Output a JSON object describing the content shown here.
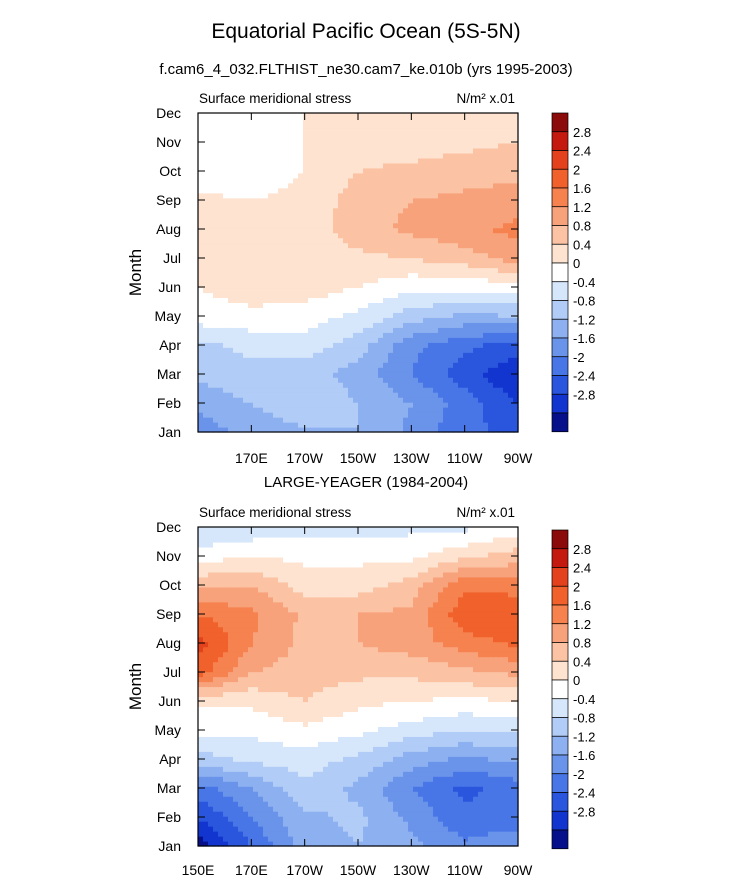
{
  "title": "Equatorial Pacific Ocean (5S-5N)",
  "chart_data": [
    {
      "type": "heatmap",
      "title": "f.cam6_4_032.FLTHIST_ne30.cam7_ke.010b (yrs 1995-2003)",
      "left_label": "Surface meridional stress",
      "right_label": "N/m² x.01",
      "ylabel": "Month",
      "xlabel": "",
      "x_ticks": [
        "170E",
        "170W",
        "150W",
        "130W",
        "110W",
        "90W"
      ],
      "x_tick_pos": [
        170,
        190,
        210,
        230,
        250,
        270
      ],
      "y_ticks": [
        "Jan",
        "Feb",
        "Mar",
        "Apr",
        "May",
        "Jun",
        "Jul",
        "Aug",
        "Sep",
        "Oct",
        "Nov",
        "Dec"
      ],
      "x_range_deg": [
        150,
        270
      ],
      "x": [
        150,
        170,
        190,
        210,
        230,
        250,
        270
      ],
      "z": [
        [
          -1.4,
          -1.1,
          -0.9,
          -0.8,
          -1.3,
          -1.9,
          -2.1
        ],
        [
          -1.1,
          -0.8,
          -0.4,
          -0.8,
          -1.2,
          -1.8,
          -2.4
        ],
        [
          -0.7,
          -0.5,
          -0.6,
          -1.0,
          -1.6,
          -2.2,
          -2.8
        ],
        [
          -0.5,
          -0.3,
          -0.2,
          -0.6,
          -1.5,
          -1.9,
          -2.2
        ],
        [
          0.2,
          0.3,
          0.2,
          -0.1,
          -0.6,
          -0.9,
          -0.8
        ],
        [
          0.4,
          0.6,
          0.6,
          0.4,
          0.1,
          0.1,
          0.2
        ],
        [
          0.5,
          0.5,
          0.6,
          0.7,
          0.8,
          1.0,
          1.4
        ],
        [
          0.6,
          0.5,
          0.6,
          1.0,
          1.3,
          1.5,
          1.7
        ],
        [
          0.5,
          0.4,
          0.5,
          1.0,
          1.2,
          1.3,
          1.4
        ],
        [
          0.1,
          0.2,
          0.4,
          0.8,
          0.9,
          1.0,
          1.1
        ],
        [
          0.1,
          0.2,
          0.4,
          0.6,
          0.6,
          0.7,
          0.8
        ],
        [
          0.2,
          0.3,
          0.4,
          0.5,
          0.5,
          0.6,
          0.7
        ]
      ]
    },
    {
      "type": "heatmap",
      "title": "LARGE-YEAGER (1984-2004)",
      "left_label": "Surface meridional stress",
      "right_label": "N/m² x.01",
      "ylabel": "Month",
      "xlabel": "",
      "x_ticks": [
        "150E",
        "170E",
        "170W",
        "150W",
        "130W",
        "110W",
        "90W"
      ],
      "x_tick_pos": [
        150,
        170,
        190,
        210,
        230,
        250,
        270
      ],
      "y_ticks": [
        "Jan",
        "Feb",
        "Mar",
        "Apr",
        "May",
        "Jun",
        "Jul",
        "Aug",
        "Sep",
        "Oct",
        "Nov",
        "Dec"
      ],
      "x_range_deg": [
        150,
        270
      ],
      "x": [
        150,
        170,
        190,
        210,
        230,
        250,
        270
      ],
      "z": [
        [
          -3.0,
          -2.0,
          -1.0,
          -0.8,
          -1.1,
          -1.5,
          -1.3
        ],
        [
          -2.4,
          -1.6,
          -0.9,
          -0.7,
          -1.3,
          -1.9,
          -1.8
        ],
        [
          -1.8,
          -1.2,
          -0.5,
          -0.9,
          -1.6,
          -2.1,
          -1.8
        ],
        [
          -0.6,
          -0.3,
          -0.2,
          -0.5,
          -1.0,
          -1.3,
          -1.1
        ],
        [
          0.1,
          0.1,
          0.3,
          0.1,
          -0.2,
          -0.4,
          -0.3
        ],
        [
          0.5,
          0.5,
          0.8,
          0.5,
          0.4,
          0.3,
          0.4
        ],
        [
          2.2,
          1.2,
          1.0,
          0.9,
          0.9,
          1.1,
          1.3
        ],
        [
          2.6,
          1.6,
          1.1,
          1.2,
          1.4,
          1.8,
          2.1
        ],
        [
          2.0,
          1.7,
          1.1,
          1.2,
          1.3,
          2.3,
          2.4
        ],
        [
          1.1,
          1.2,
          0.6,
          0.6,
          1.0,
          1.9,
          1.8
        ],
        [
          0.2,
          0.4,
          0.3,
          0.3,
          0.3,
          0.7,
          1.0
        ],
        [
          -0.4,
          -0.3,
          -0.2,
          -0.2,
          -0.1,
          -0.1,
          0.2
        ]
      ]
    }
  ],
  "colorbar": {
    "labels": [
      "2.8",
      "2.4",
      "2",
      "1.6",
      "1.2",
      "0.8",
      "0.4",
      "0",
      "-0.4",
      "-0.8",
      "-1.2",
      "-1.6",
      "-2",
      "-2.4",
      "-2.8"
    ],
    "colors": [
      "#8b0a0a",
      "#c4190f",
      "#e3421c",
      "#f0612c",
      "#f5824f",
      "#f8a27c",
      "#fbc3a4",
      "#fde3d0",
      "#ffffff",
      "#d6e6fb",
      "#b1ccf6",
      "#8db0f0",
      "#6a93ea",
      "#4876e6",
      "#2a56de",
      "#1235cf",
      "#05108a"
    ]
  }
}
